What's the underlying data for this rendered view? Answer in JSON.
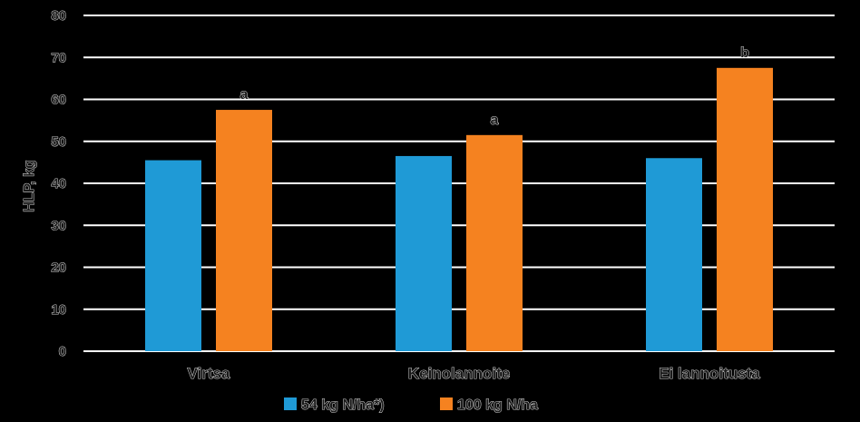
{
  "chart_data": {
    "type": "bar",
    "title": "",
    "xlabel": "",
    "ylabel": "HLP, kg",
    "ylim": [
      0,
      80
    ],
    "yticks": [
      0,
      10,
      20,
      30,
      40,
      50,
      60,
      70,
      80
    ],
    "grid": true,
    "legend_position": "bottom",
    "categories": [
      "Virtsa",
      "Keinolannoite",
      "Ei lannoitusta"
    ],
    "series": [
      {
        "name": "54 kg N/ha*)",
        "color": "#1f9ad6",
        "values": [
          45.5,
          46.5,
          46
        ]
      },
      {
        "name": "100 kg N/ha",
        "color": "#f58220",
        "values": [
          57.5,
          51.5,
          67.5
        ]
      }
    ],
    "annotations": [
      "a",
      "a",
      "b"
    ]
  }
}
